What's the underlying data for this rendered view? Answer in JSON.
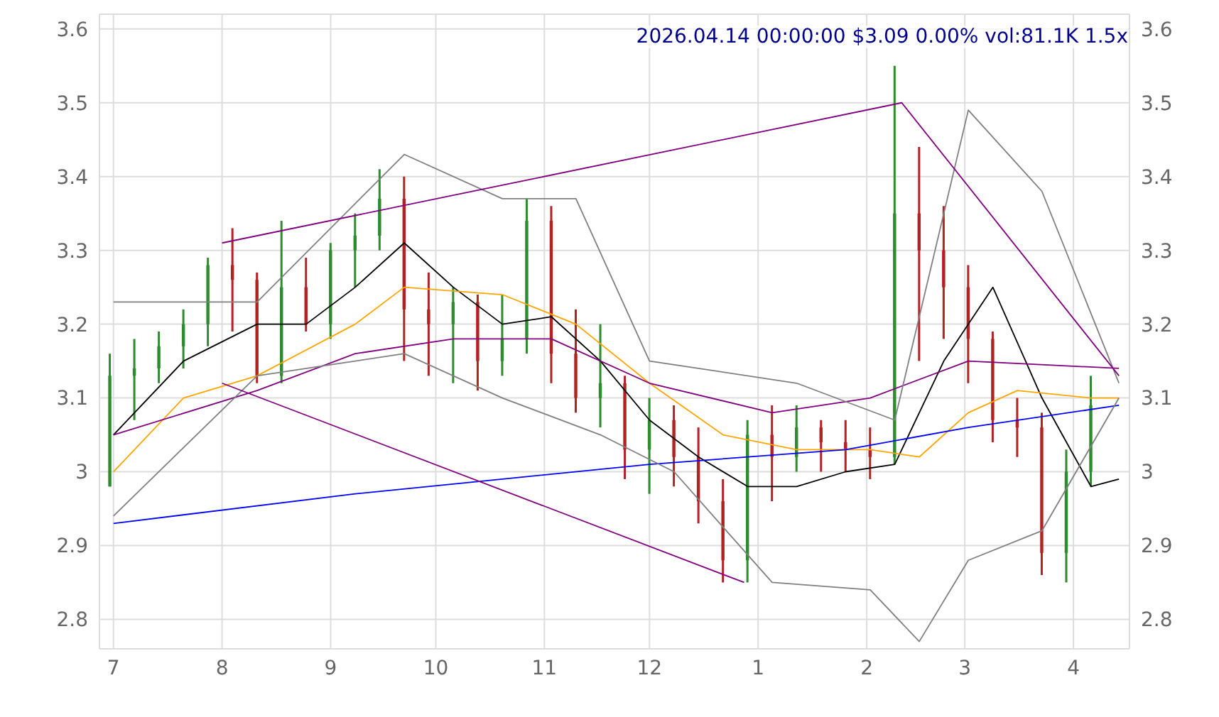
{
  "chart_data": {
    "type": "candlestick",
    "title": "2026.04.14 00:00:00 $3.09 0.00% vol:81.1K 1.5x",
    "x": [
      "2025-06-30",
      "2025-07-07",
      "2025-07-14",
      "2025-07-21",
      "2025-07-28",
      "2025-08-04",
      "2025-08-11",
      "2025-08-18",
      "2025-08-25",
      "2025-09-01",
      "2025-09-08",
      "2025-09-15",
      "2025-09-22",
      "2025-09-29",
      "2025-10-06",
      "2025-10-13",
      "2025-10-20",
      "2025-10-27",
      "2025-11-03",
      "2025-11-10",
      "2025-11-17",
      "2025-11-24",
      "2025-12-01",
      "2025-12-08",
      "2025-12-15",
      "2025-12-22",
      "2025-12-29",
      "2026-01-05",
      "2026-01-12",
      "2026-01-19",
      "2026-01-26",
      "2026-02-02",
      "2026-02-09",
      "2026-02-16",
      "2026-02-23",
      "2026-03-02",
      "2026-03-09",
      "2026-03-16",
      "2026-03-23",
      "2026-03-30",
      "2026-04-06"
    ],
    "ohlc": [
      [
        2.98,
        3.16,
        2.98,
        3.13
      ],
      [
        3.13,
        3.18,
        3.07,
        3.14
      ],
      [
        3.14,
        3.19,
        3.12,
        3.17
      ],
      [
        3.17,
        3.22,
        3.14,
        3.2
      ],
      [
        3.2,
        3.29,
        3.17,
        3.28
      ],
      [
        3.28,
        3.33,
        3.19,
        3.26
      ],
      [
        3.26,
        3.27,
        3.12,
        3.13
      ],
      [
        3.13,
        3.34,
        3.12,
        3.25
      ],
      [
        3.25,
        3.29,
        3.19,
        3.2
      ],
      [
        3.2,
        3.31,
        3.18,
        3.3
      ],
      [
        3.3,
        3.35,
        3.25,
        3.32
      ],
      [
        3.32,
        3.41,
        3.3,
        3.37
      ],
      [
        3.37,
        3.4,
        3.15,
        3.22
      ],
      [
        3.22,
        3.27,
        3.13,
        3.2
      ],
      [
        3.2,
        3.25,
        3.12,
        3.23
      ],
      [
        3.23,
        3.24,
        3.11,
        3.15
      ],
      [
        3.15,
        3.24,
        3.13,
        3.18
      ],
      [
        3.18,
        3.37,
        3.16,
        3.34
      ],
      [
        3.34,
        3.36,
        3.12,
        3.16
      ],
      [
        3.16,
        3.22,
        3.08,
        3.1
      ],
      [
        3.1,
        3.2,
        3.06,
        3.12
      ],
      [
        3.12,
        3.13,
        2.99,
        3.03
      ],
      [
        3.03,
        3.1,
        2.97,
        3.07
      ],
      [
        3.07,
        3.09,
        2.98,
        3.02
      ],
      [
        3.02,
        3.06,
        2.93,
        2.96
      ],
      [
        2.96,
        2.99,
        2.85,
        2.88
      ],
      [
        2.88,
        3.07,
        2.85,
        3.05
      ],
      [
        3.05,
        3.09,
        2.96,
        3.02
      ],
      [
        3.02,
        3.09,
        3.0,
        3.06
      ],
      [
        3.06,
        3.07,
        3.0,
        3.04
      ],
      [
        3.04,
        3.07,
        3.0,
        3.03
      ],
      [
        3.03,
        3.06,
        2.99,
        3.02
      ],
      [
        3.02,
        3.55,
        3.01,
        3.35
      ],
      [
        3.35,
        3.44,
        3.15,
        3.3
      ],
      [
        3.3,
        3.36,
        3.18,
        3.25
      ],
      [
        3.25,
        3.28,
        3.12,
        3.18
      ],
      [
        3.18,
        3.19,
        3.04,
        3.07
      ],
      [
        3.07,
        3.1,
        3.02,
        3.06
      ],
      [
        3.06,
        3.08,
        2.86,
        2.89
      ],
      [
        2.89,
        3.03,
        2.85,
        3.0
      ],
      [
        3.0,
        3.13,
        2.98,
        3.09
      ]
    ],
    "colors": [
      "#2e8b2e",
      "#2e8b2e",
      "#2e8b2e",
      "#2e8b2e",
      "#2e8b2e",
      "#b22222",
      "#b22222",
      "#2e8b2e",
      "#b22222",
      "#2e8b2e",
      "#2e8b2e",
      "#2e8b2e",
      "#b22222",
      "#b22222",
      "#2e8b2e",
      "#b22222",
      "#2e8b2e",
      "#2e8b2e",
      "#b22222",
      "#b22222",
      "#2e8b2e",
      "#b22222",
      "#2e8b2e",
      "#b22222",
      "#b22222",
      "#b22222",
      "#2e8b2e",
      "#b22222",
      "#2e8b2e",
      "#b22222",
      "#b22222",
      "#b22222",
      "#2e8b2e",
      "#b22222",
      "#b22222",
      "#b22222",
      "#b22222",
      "#b22222",
      "#b22222",
      "#2e8b2e",
      "#2e8b2e"
    ],
    "series": [
      {
        "type": "line",
        "color": "#000000",
        "x": [
          "2025-07-01",
          "2025-07-21",
          "2025-08-11",
          "2025-08-25",
          "2025-09-08",
          "2025-09-22",
          "2025-10-06",
          "2025-10-20",
          "2025-11-03",
          "2025-11-17",
          "2025-12-01",
          "2025-12-15",
          "2025-12-29",
          "2026-01-12",
          "2026-01-26",
          "2026-02-09",
          "2026-02-23",
          "2026-03-09",
          "2026-03-23",
          "2026-04-06",
          "2026-04-14"
        ],
        "values": [
          3.05,
          3.15,
          3.2,
          3.2,
          3.25,
          3.31,
          3.25,
          3.2,
          3.21,
          3.15,
          3.07,
          3.02,
          2.98,
          2.98,
          3.0,
          3.01,
          3.15,
          3.25,
          3.1,
          2.98,
          2.99
        ]
      },
      {
        "type": "line",
        "color": "#ffa500",
        "x": [
          "2025-07-01",
          "2025-07-21",
          "2025-08-11",
          "2025-09-08",
          "2025-09-22",
          "2025-10-20",
          "2025-11-10",
          "2025-12-01",
          "2025-12-22",
          "2026-01-12",
          "2026-02-02",
          "2026-02-16",
          "2026-03-02",
          "2026-03-16",
          "2026-04-06",
          "2026-04-14"
        ],
        "values": [
          3.0,
          3.1,
          3.13,
          3.2,
          3.25,
          3.24,
          3.2,
          3.12,
          3.05,
          3.03,
          3.03,
          3.02,
          3.08,
          3.11,
          3.1,
          3.1
        ]
      },
      {
        "type": "line",
        "color": "#800080",
        "x": [
          "2025-07-01",
          "2025-08-11",
          "2025-09-08",
          "2025-10-06",
          "2025-11-03",
          "2025-12-01",
          "2026-01-05",
          "2026-02-02",
          "2026-03-02",
          "2026-04-14"
        ],
        "values": [
          3.05,
          3.11,
          3.16,
          3.18,
          3.18,
          3.12,
          3.08,
          3.1,
          3.15,
          3.14
        ]
      },
      {
        "type": "line",
        "color": "#0000ff",
        "x": [
          "2025-07-01",
          "2025-09-08",
          "2025-10-20",
          "2025-12-01",
          "2026-01-26",
          "2026-03-02",
          "2026-04-14"
        ],
        "values": [
          2.93,
          2.97,
          2.99,
          3.01,
          3.03,
          3.06,
          3.09
        ]
      },
      {
        "type": "line",
        "color": "#808080",
        "x": [
          "2025-07-01",
          "2025-08-11",
          "2025-09-22",
          "2025-10-20",
          "2025-11-10",
          "2025-12-01",
          "2026-01-12",
          "2026-02-09",
          "2026-03-02",
          "2026-03-23",
          "2026-04-14"
        ],
        "values": [
          3.23,
          3.23,
          3.43,
          3.37,
          3.37,
          3.15,
          3.12,
          3.07,
          3.49,
          3.38,
          3.12
        ]
      },
      {
        "type": "line",
        "color": "#808080",
        "x": [
          "2025-07-01",
          "2025-08-11",
          "2025-09-22",
          "2025-10-20",
          "2025-11-17",
          "2025-12-08",
          "2026-01-05",
          "2026-02-02",
          "2026-02-16",
          "2026-03-02",
          "2026-03-23",
          "2026-04-14"
        ],
        "values": [
          2.94,
          3.13,
          3.16,
          3.1,
          3.05,
          3.0,
          2.85,
          2.84,
          2.77,
          2.88,
          2.92,
          3.1
        ]
      },
      {
        "type": "line",
        "color": "#800080",
        "x": [
          "2025-08-01",
          "2026-02-11",
          "2026-04-14"
        ],
        "values": [
          3.31,
          3.5,
          3.13
        ]
      },
      {
        "type": "line",
        "color": "#800080",
        "x": [
          "2025-08-01",
          "2025-12-28"
        ],
        "values": [
          3.12,
          2.85
        ]
      }
    ],
    "xlim": [
      "2025-06-27",
      "2026-04-17"
    ],
    "xticks": [
      {
        "value": "2025-07-01",
        "label": "7"
      },
      {
        "value": "2025-08-01",
        "label": "8"
      },
      {
        "value": "2025-09-01",
        "label": "9"
      },
      {
        "value": "2025-10-01",
        "label": "10"
      },
      {
        "value": "2025-11-01",
        "label": "11"
      },
      {
        "value": "2025-12-01",
        "label": "12"
      },
      {
        "value": "2026-01-01",
        "label": "1"
      },
      {
        "value": "2026-02-01",
        "label": "2"
      },
      {
        "value": "2026-03-01",
        "label": "3"
      },
      {
        "value": "2026-04-01",
        "label": "4"
      }
    ],
    "ylim": [
      2.76,
      3.62
    ],
    "yticks": [
      2.8,
      2.9,
      3.0,
      3.1,
      3.2,
      3.3,
      3.4,
      3.5,
      3.6
    ],
    "y2lim": [
      2.76,
      3.62
    ],
    "y2ticks": [
      2.8,
      2.9,
      3.0,
      3.1,
      3.2,
      3.3,
      3.4,
      3.5,
      3.6
    ],
    "grid": true,
    "marker": "none"
  }
}
